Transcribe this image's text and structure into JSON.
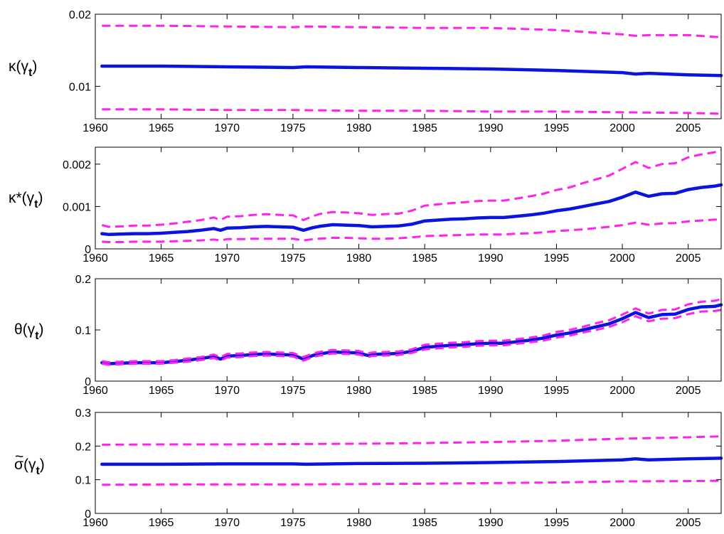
{
  "colors": {
    "central": "#0a14dc",
    "band": "#ff22ee",
    "axis": "#000000"
  },
  "chart_data": [
    {
      "type": "line",
      "ylabel": {
        "base": "κ(γ",
        "sub": "t",
        "close": ")"
      },
      "xlim": [
        1960,
        2007.5
      ],
      "ylim": [
        0.0055,
        0.02
      ],
      "xticks": [
        1960,
        1965,
        1970,
        1975,
        1980,
        1985,
        1990,
        1995,
        2000,
        2005
      ],
      "yticks": [
        {
          "value": 0.01,
          "label": "0.01"
        },
        {
          "value": 0.02,
          "label": "0.02"
        }
      ],
      "series": [
        {
          "style": "solid",
          "x": [
            1960.5,
            1965,
            1970,
            1975,
            1976,
            1980,
            1985,
            1990,
            1995,
            2000,
            2001,
            2002,
            2005,
            2007.5
          ],
          "y": [
            0.0128,
            0.0128,
            0.0127,
            0.0126,
            0.0127,
            0.0126,
            0.0125,
            0.0124,
            0.0122,
            0.0119,
            0.0117,
            0.0118,
            0.0116,
            0.0115
          ]
        },
        {
          "style": "dashed",
          "x": [
            1960.5,
            1965,
            1970,
            1975,
            1976,
            1980,
            1985,
            1990,
            1995,
            2000,
            2001,
            2002,
            2005,
            2007.5
          ],
          "y": [
            0.0184,
            0.0184,
            0.0183,
            0.0182,
            0.0183,
            0.0182,
            0.0181,
            0.0181,
            0.0178,
            0.0172,
            0.017,
            0.0171,
            0.0171,
            0.0168
          ]
        },
        {
          "style": "dashed",
          "x": [
            1960.5,
            1965,
            1970,
            1975,
            1980,
            1985,
            1990,
            1995,
            2000,
            2005,
            2007.5
          ],
          "y": [
            0.0068,
            0.0068,
            0.0067,
            0.0067,
            0.0066,
            0.0066,
            0.0065,
            0.0065,
            0.0064,
            0.0063,
            0.0062
          ]
        }
      ]
    },
    {
      "type": "line",
      "ylabel": {
        "base": "κ*(γ",
        "sub": "t",
        "close": ")"
      },
      "xlim": [
        1960,
        2007.5
      ],
      "ylim": [
        0,
        0.0024
      ],
      "xticks": [
        1960,
        1965,
        1970,
        1975,
        1980,
        1985,
        1990,
        1995,
        2000,
        2005
      ],
      "yticks": [
        {
          "value": 0,
          "label": "0"
        },
        {
          "value": 0.001,
          "label": "0.001"
        },
        {
          "value": 0.002,
          "label": "0.002"
        }
      ],
      "series": [
        {
          "style": "solid",
          "x": [
            1960.5,
            1961,
            1962,
            1963,
            1964,
            1965,
            1966,
            1967,
            1968,
            1969,
            1969.5,
            1970,
            1971,
            1972,
            1973,
            1974,
            1975,
            1975.8,
            1976.5,
            1977,
            1978,
            1979,
            1980,
            1981,
            1982,
            1983,
            1984,
            1985,
            1986,
            1987,
            1988,
            1989,
            1990,
            1991,
            1992,
            1993,
            1994,
            1995,
            1996,
            1997,
            1998,
            1999,
            2000,
            2001,
            2002,
            2003,
            2004,
            2005,
            2006,
            2007,
            2007.5
          ],
          "y": [
            0.00036,
            0.00034,
            0.00035,
            0.00036,
            0.00036,
            0.00037,
            0.00039,
            0.00041,
            0.00044,
            0.00048,
            0.00044,
            0.00049,
            0.0005,
            0.00052,
            0.00053,
            0.00052,
            0.00051,
            0.00044,
            0.0005,
            0.00053,
            0.00057,
            0.00056,
            0.00055,
            0.00052,
            0.00053,
            0.00054,
            0.00058,
            0.00066,
            0.00068,
            0.0007,
            0.00071,
            0.00073,
            0.00074,
            0.00074,
            0.00077,
            0.0008,
            0.00084,
            0.0009,
            0.00094,
            0.001,
            0.00106,
            0.00112,
            0.00122,
            0.00134,
            0.00124,
            0.0013,
            0.00131,
            0.0014,
            0.00145,
            0.00148,
            0.00151
          ]
        },
        {
          "style": "dashed",
          "x": [
            1960.5,
            1961,
            1962,
            1963,
            1964,
            1965,
            1966,
            1967,
            1968,
            1969,
            1969.5,
            1970,
            1971,
            1972,
            1973,
            1974,
            1975,
            1975.8,
            1976.5,
            1977,
            1978,
            1979,
            1980,
            1981,
            1982,
            1983,
            1984,
            1985,
            1986,
            1987,
            1988,
            1989,
            1990,
            1991,
            1992,
            1993,
            1994,
            1995,
            1996,
            1997,
            1998,
            1999,
            2000,
            2001,
            2002,
            2003,
            2004,
            2005,
            2006,
            2007,
            2007.5
          ],
          "y": [
            0.00056,
            0.00052,
            0.00053,
            0.00055,
            0.00055,
            0.00057,
            0.0006,
            0.00064,
            0.00068,
            0.00074,
            0.00068,
            0.00076,
            0.00077,
            0.0008,
            0.00082,
            0.0008,
            0.00079,
            0.00068,
            0.00077,
            0.00082,
            0.00087,
            0.00086,
            0.00084,
            0.0008,
            0.00082,
            0.00083,
            0.0009,
            0.00102,
            0.00105,
            0.00108,
            0.0011,
            0.00113,
            0.00114,
            0.00114,
            0.00119,
            0.00124,
            0.0013,
            0.00139,
            0.00145,
            0.00155,
            0.00164,
            0.00173,
            0.00189,
            0.00205,
            0.00191,
            0.002,
            0.00202,
            0.00216,
            0.00223,
            0.00228,
            0.00233
          ]
        },
        {
          "style": "dashed",
          "x": [
            1960.5,
            1961,
            1962,
            1963,
            1964,
            1965,
            1966,
            1967,
            1968,
            1969,
            1969.5,
            1970,
            1971,
            1972,
            1973,
            1974,
            1975,
            1975.8,
            1976.5,
            1977,
            1978,
            1979,
            1980,
            1981,
            1982,
            1983,
            1984,
            1985,
            1986,
            1987,
            1988,
            1989,
            1990,
            1991,
            1992,
            1993,
            1994,
            1995,
            1996,
            1997,
            1998,
            1999,
            2000,
            2001,
            2002,
            2003,
            2004,
            2005,
            2006,
            2007,
            2007.5
          ],
          "y": [
            0.00017,
            0.00016,
            0.00016,
            0.00017,
            0.00017,
            0.00017,
            0.00018,
            0.00019,
            0.0002,
            0.00022,
            0.0002,
            0.00023,
            0.00023,
            0.00024,
            0.00024,
            0.00024,
            0.00024,
            0.0002,
            0.00023,
            0.00024,
            0.00026,
            0.00026,
            0.00025,
            0.00024,
            0.00024,
            0.00025,
            0.00027,
            0.0003,
            0.00031,
            0.00032,
            0.00033,
            0.00034,
            0.00034,
            0.00034,
            0.00036,
            0.00037,
            0.00039,
            0.00042,
            0.00044,
            0.00046,
            0.00049,
            0.00052,
            0.00056,
            0.00062,
            0.00057,
            0.0006,
            0.00061,
            0.00065,
            0.00067,
            0.00069,
            0.0007
          ]
        }
      ]
    },
    {
      "type": "line",
      "ylabel": {
        "base": "θ(γ",
        "sub": "t",
        "close": ")"
      },
      "xlim": [
        1960,
        2007.5
      ],
      "ylim": [
        0,
        0.2
      ],
      "xticks": [
        1960,
        1965,
        1970,
        1975,
        1980,
        1985,
        1990,
        1995,
        2000,
        2005
      ],
      "yticks": [
        {
          "value": 0,
          "label": "0"
        },
        {
          "value": 0.1,
          "label": "0.1"
        },
        {
          "value": 0.2,
          "label": "0.2"
        }
      ],
      "series": [
        {
          "style": "solid",
          "x": [
            1960.5,
            1961,
            1962,
            1963,
            1964,
            1965,
            1966,
            1967,
            1968,
            1969,
            1969.5,
            1970,
            1971,
            1972,
            1973,
            1974,
            1975,
            1975.8,
            1976.5,
            1977,
            1978,
            1979,
            1980,
            1980.7,
            1981,
            1982,
            1983,
            1984,
            1985,
            1986,
            1987,
            1988,
            1989,
            1990,
            1991,
            1992,
            1993,
            1994,
            1995,
            1996,
            1997,
            1998,
            1999,
            2000,
            2001,
            2002,
            2003,
            2004,
            2005,
            2006,
            2007,
            2007.5
          ],
          "y": [
            0.036,
            0.034,
            0.035,
            0.036,
            0.036,
            0.036,
            0.038,
            0.041,
            0.044,
            0.048,
            0.043,
            0.049,
            0.05,
            0.052,
            0.053,
            0.052,
            0.051,
            0.043,
            0.05,
            0.053,
            0.057,
            0.056,
            0.055,
            0.05,
            0.052,
            0.053,
            0.054,
            0.058,
            0.066,
            0.068,
            0.07,
            0.071,
            0.073,
            0.074,
            0.074,
            0.077,
            0.08,
            0.084,
            0.09,
            0.094,
            0.1,
            0.106,
            0.112,
            0.122,
            0.134,
            0.124,
            0.13,
            0.131,
            0.14,
            0.145,
            0.146,
            0.149
          ]
        },
        {
          "style": "dashed",
          "x": [
            1960.5,
            1961,
            1962,
            1963,
            1964,
            1965,
            1966,
            1967,
            1968,
            1969,
            1969.5,
            1970,
            1971,
            1972,
            1973,
            1974,
            1975,
            1975.8,
            1976.5,
            1977,
            1978,
            1979,
            1980,
            1980.7,
            1981,
            1982,
            1983,
            1984,
            1985,
            1986,
            1987,
            1988,
            1989,
            1990,
            1991,
            1992,
            1993,
            1994,
            1995,
            1996,
            1997,
            1998,
            1999,
            2000,
            2001,
            2002,
            2003,
            2004,
            2005,
            2006,
            2007,
            2007.5
          ],
          "y": [
            0.039,
            0.037,
            0.038,
            0.039,
            0.039,
            0.039,
            0.041,
            0.044,
            0.047,
            0.052,
            0.047,
            0.053,
            0.054,
            0.056,
            0.057,
            0.056,
            0.055,
            0.047,
            0.054,
            0.057,
            0.061,
            0.06,
            0.059,
            0.054,
            0.056,
            0.057,
            0.058,
            0.062,
            0.071,
            0.073,
            0.075,
            0.076,
            0.078,
            0.079,
            0.079,
            0.082,
            0.085,
            0.089,
            0.096,
            0.1,
            0.106,
            0.113,
            0.119,
            0.13,
            0.142,
            0.132,
            0.139,
            0.14,
            0.15,
            0.155,
            0.157,
            0.16
          ]
        },
        {
          "style": "dashed",
          "x": [
            1960.5,
            1961,
            1962,
            1963,
            1964,
            1965,
            1966,
            1967,
            1968,
            1969,
            1969.5,
            1970,
            1971,
            1972,
            1973,
            1974,
            1975,
            1975.8,
            1976.5,
            1977,
            1978,
            1979,
            1980,
            1980.7,
            1981,
            1982,
            1983,
            1984,
            1985,
            1986,
            1987,
            1988,
            1989,
            1990,
            1991,
            1992,
            1993,
            1994,
            1995,
            1996,
            1997,
            1998,
            1999,
            2000,
            2001,
            2002,
            2003,
            2004,
            2005,
            2006,
            2007,
            2007.5
          ],
          "y": [
            0.034,
            0.032,
            0.033,
            0.034,
            0.034,
            0.034,
            0.036,
            0.038,
            0.041,
            0.045,
            0.04,
            0.046,
            0.047,
            0.049,
            0.05,
            0.049,
            0.048,
            0.04,
            0.047,
            0.05,
            0.054,
            0.053,
            0.052,
            0.047,
            0.049,
            0.05,
            0.051,
            0.055,
            0.062,
            0.064,
            0.066,
            0.067,
            0.069,
            0.07,
            0.07,
            0.073,
            0.076,
            0.079,
            0.085,
            0.089,
            0.095,
            0.1,
            0.106,
            0.115,
            0.127,
            0.117,
            0.122,
            0.123,
            0.131,
            0.136,
            0.137,
            0.139
          ]
        }
      ]
    },
    {
      "type": "line",
      "ylabel": {
        "base": "σ(γ",
        "tilde": "~",
        "sub": "t",
        "close": ")"
      },
      "xlim": [
        1960,
        2007.5
      ],
      "ylim": [
        0,
        0.3
      ],
      "xticks": [
        1960,
        1965,
        1970,
        1975,
        1980,
        1985,
        1990,
        1995,
        2000,
        2005
      ],
      "yticks": [
        {
          "value": 0,
          "label": "0"
        },
        {
          "value": 0.1,
          "label": "0.1"
        },
        {
          "value": 0.2,
          "label": "0.2"
        },
        {
          "value": 0.3,
          "label": "0.3"
        }
      ],
      "series": [
        {
          "style": "solid",
          "x": [
            1960.5,
            1965,
            1970,
            1975,
            1976,
            1980,
            1985,
            1990,
            1995,
            2000,
            2001,
            2002,
            2005,
            2007.5
          ],
          "y": [
            0.146,
            0.146,
            0.147,
            0.147,
            0.146,
            0.148,
            0.149,
            0.151,
            0.154,
            0.159,
            0.162,
            0.159,
            0.162,
            0.164
          ]
        },
        {
          "style": "dashed",
          "x": [
            1960.5,
            1965,
            1970,
            1975,
            1980,
            1985,
            1990,
            1995,
            2000,
            2005,
            2007.5
          ],
          "y": [
            0.204,
            0.205,
            0.205,
            0.206,
            0.207,
            0.209,
            0.212,
            0.216,
            0.222,
            0.226,
            0.229
          ]
        },
        {
          "style": "dashed",
          "x": [
            1960.5,
            1965,
            1970,
            1975,
            1980,
            1985,
            1990,
            1995,
            2000,
            2005,
            2007.5
          ],
          "y": [
            0.085,
            0.086,
            0.086,
            0.086,
            0.087,
            0.088,
            0.09,
            0.092,
            0.095,
            0.096,
            0.097
          ]
        }
      ]
    }
  ]
}
